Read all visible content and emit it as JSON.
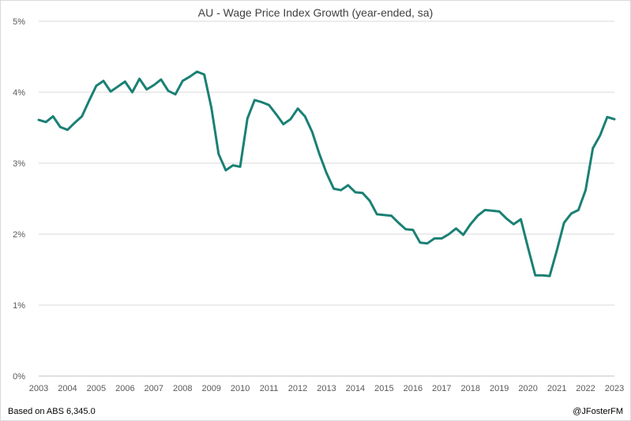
{
  "chart_data": {
    "type": "line",
    "title": "AU - Wage Price Index Growth (year-ended, sa)",
    "xlabel": "",
    "ylabel": "",
    "ylim": [
      0,
      5
    ],
    "xlim": [
      2003,
      2023
    ],
    "grid": true,
    "yticks": [
      "0%",
      "1%",
      "2%",
      "3%",
      "4%",
      "5%"
    ],
    "xticks": [
      "2003",
      "2004",
      "2005",
      "2006",
      "2007",
      "2008",
      "2009",
      "2010",
      "2011",
      "2012",
      "2013",
      "2014",
      "2015",
      "2016",
      "2017",
      "2018",
      "2019",
      "2020",
      "2021",
      "2022",
      "2023"
    ],
    "series": [
      {
        "name": "Wage Price Index growth",
        "color": "#1a8074",
        "x": [
          2003.0,
          2003.25,
          2003.5,
          2003.75,
          2004.0,
          2004.25,
          2004.5,
          2004.75,
          2005.0,
          2005.25,
          2005.5,
          2005.75,
          2006.0,
          2006.25,
          2006.5,
          2006.75,
          2007.0,
          2007.25,
          2007.5,
          2007.75,
          2008.0,
          2008.25,
          2008.5,
          2008.75,
          2009.0,
          2009.25,
          2009.5,
          2009.75,
          2010.0,
          2010.25,
          2010.5,
          2010.75,
          2011.0,
          2011.25,
          2011.5,
          2011.75,
          2012.0,
          2012.25,
          2012.5,
          2012.75,
          2013.0,
          2013.25,
          2013.5,
          2013.75,
          2014.0,
          2014.25,
          2014.5,
          2014.75,
          2015.0,
          2015.25,
          2015.5,
          2015.75,
          2016.0,
          2016.25,
          2016.5,
          2016.75,
          2017.0,
          2017.25,
          2017.5,
          2017.75,
          2018.0,
          2018.25,
          2018.5,
          2018.75,
          2019.0,
          2019.25,
          2019.5,
          2019.75,
          2020.0,
          2020.25,
          2020.5,
          2020.75,
          2021.0,
          2021.25,
          2021.5,
          2021.75,
          2022.0,
          2022.25,
          2022.5,
          2022.75,
          2023.0
        ],
        "values": [
          3.61,
          3.58,
          3.66,
          3.51,
          3.47,
          3.57,
          3.66,
          3.88,
          4.09,
          4.16,
          4.01,
          4.08,
          4.15,
          4.0,
          4.19,
          4.04,
          4.1,
          4.18,
          4.02,
          3.97,
          4.16,
          4.22,
          4.29,
          4.25,
          3.78,
          3.13,
          2.9,
          2.97,
          2.95,
          3.63,
          3.89,
          3.86,
          3.82,
          3.69,
          3.55,
          3.62,
          3.77,
          3.66,
          3.44,
          3.13,
          2.86,
          2.64,
          2.62,
          2.69,
          2.59,
          2.58,
          2.47,
          2.28,
          2.27,
          2.26,
          2.16,
          2.07,
          2.06,
          1.88,
          1.87,
          1.94,
          1.94,
          2.0,
          2.08,
          1.99,
          2.14,
          2.26,
          2.34,
          2.33,
          2.32,
          2.22,
          2.14,
          2.21,
          1.81,
          1.42,
          1.42,
          1.41,
          1.77,
          2.16,
          2.29,
          2.34,
          2.62,
          3.21,
          3.39,
          3.65,
          3.62
        ]
      }
    ]
  },
  "footer": {
    "source": "Based on ABS 6,345.0",
    "credit": "@JFosterFM"
  }
}
